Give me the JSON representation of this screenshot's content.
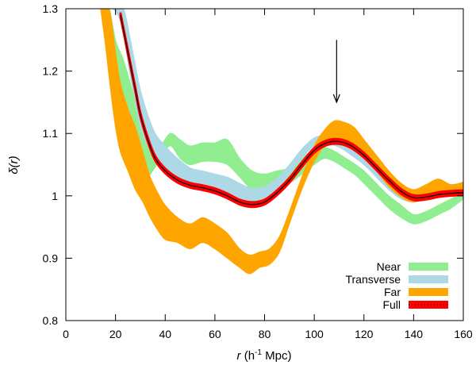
{
  "chart_data": {
    "type": "line",
    "xlim": [
      0,
      160
    ],
    "ylim": [
      0.8,
      1.3
    ],
    "xticks": [
      0,
      20,
      40,
      60,
      80,
      100,
      120,
      140,
      160
    ],
    "yticks": [
      0.8,
      0.9,
      1,
      1.1,
      1.2,
      1.3
    ],
    "xtick_labels": [
      "0",
      "20",
      "40",
      "60",
      "80",
      "100",
      "120",
      "140",
      "160"
    ],
    "ytick_labels": [
      "0.8",
      "0.9",
      "1",
      "1.1",
      "1.2",
      "1.3"
    ],
    "xlabel_parts": [
      "r",
      " (h",
      "-1",
      " Mpc)"
    ],
    "ylabel": "δ(r)",
    "legend_position": "bottom-right",
    "grid": false,
    "annotation": {
      "type": "arrow",
      "x": 109,
      "y_from": 1.25,
      "y_to": 1.15
    },
    "series": [
      {
        "name": "Near",
        "color": "#90ee90",
        "x": [
          14,
          17,
          20,
          23,
          26,
          29,
          32,
          35,
          38,
          42,
          46,
          50,
          55,
          60,
          65,
          70,
          75,
          80,
          85,
          90,
          95,
          100,
          104,
          108,
          112,
          116,
          120,
          125,
          130,
          135,
          140,
          145,
          150,
          155,
          160
        ],
        "lower": [
          1.3,
          1.25,
          1.19,
          1.15,
          1.1,
          1.06,
          1.03,
          1.04,
          1.06,
          1.08,
          1.06,
          1.05,
          1.055,
          1.055,
          1.05,
          1.03,
          1.01,
          1.01,
          1.015,
          1.02,
          1.035,
          1.05,
          1.06,
          1.055,
          1.045,
          1.035,
          1.02,
          1.0,
          0.98,
          0.965,
          0.955,
          0.96,
          0.97,
          0.98,
          0.995
        ],
        "upper": [
          1.31,
          1.31,
          1.25,
          1.22,
          1.18,
          1.13,
          1.09,
          1.08,
          1.08,
          1.1,
          1.09,
          1.08,
          1.085,
          1.085,
          1.09,
          1.06,
          1.04,
          1.035,
          1.04,
          1.045,
          1.06,
          1.075,
          1.078,
          1.072,
          1.062,
          1.052,
          1.04,
          1.02,
          1.0,
          0.985,
          0.97,
          0.975,
          0.985,
          0.995,
          1.005
        ]
      },
      {
        "name": "Transverse",
        "color": "#add8e6",
        "x": [
          16,
          19,
          22,
          24,
          26,
          28,
          30,
          33,
          36,
          40,
          45,
          50,
          55,
          60,
          65,
          70,
          75,
          80,
          85,
          90,
          95,
          100,
          105,
          110,
          115,
          120,
          125,
          130,
          135,
          140,
          145,
          150,
          155,
          160
        ],
        "lower": [
          1.3,
          1.3,
          1.28,
          1.24,
          1.19,
          1.15,
          1.11,
          1.08,
          1.06,
          1.045,
          1.03,
          1.02,
          1.015,
          1.01,
          1.0,
          0.995,
          0.99,
          0.995,
          1.01,
          1.035,
          1.06,
          1.08,
          1.083,
          1.078,
          1.065,
          1.05,
          1.03,
          1.01,
          0.995,
          0.99,
          0.995,
          0.998,
          1.0,
          1.0
        ],
        "upper": [
          1.31,
          1.31,
          1.31,
          1.29,
          1.25,
          1.21,
          1.17,
          1.13,
          1.1,
          1.08,
          1.06,
          1.045,
          1.04,
          1.035,
          1.03,
          1.02,
          1.012,
          1.015,
          1.028,
          1.05,
          1.075,
          1.093,
          1.097,
          1.093,
          1.082,
          1.068,
          1.05,
          1.03,
          1.012,
          1.005,
          1.008,
          1.01,
          1.012,
          1.012
        ]
      },
      {
        "name": "Far",
        "color": "#ffa500",
        "x": [
          14,
          16,
          18,
          20,
          22,
          25,
          28,
          31,
          34,
          37,
          40,
          45,
          50,
          55,
          60,
          65,
          70,
          74,
          78,
          82,
          86,
          90,
          95,
          100,
          104,
          108,
          112,
          116,
          120,
          125,
          130,
          135,
          140,
          145,
          150,
          155,
          160
        ],
        "lower": [
          1.3,
          1.24,
          1.17,
          1.11,
          1.07,
          1.04,
          1.01,
          0.99,
          0.965,
          0.945,
          0.93,
          0.925,
          0.915,
          0.925,
          0.915,
          0.9,
          0.885,
          0.875,
          0.885,
          0.89,
          0.91,
          0.955,
          1.01,
          1.055,
          1.08,
          1.09,
          1.09,
          1.083,
          1.065,
          1.04,
          1.015,
          0.998,
          0.99,
          0.998,
          1.005,
          1.0,
          1.005
        ],
        "upper": [
          1.31,
          1.31,
          1.29,
          1.23,
          1.18,
          1.14,
          1.11,
          1.07,
          1.03,
          1.005,
          0.985,
          0.965,
          0.955,
          0.965,
          0.955,
          0.94,
          0.915,
          0.905,
          0.91,
          0.915,
          0.935,
          0.975,
          1.03,
          1.08,
          1.105,
          1.12,
          1.118,
          1.11,
          1.09,
          1.065,
          1.04,
          1.02,
          1.01,
          1.018,
          1.027,
          1.018,
          1.022
        ]
      },
      {
        "name": "Full",
        "color": "#ff0000",
        "line_color": "#000000",
        "x": [
          22,
          24,
          26,
          28,
          30,
          33,
          36,
          40,
          45,
          50,
          55,
          60,
          65,
          70,
          75,
          80,
          85,
          90,
          95,
          100,
          105,
          110,
          115,
          120,
          125,
          130,
          135,
          140,
          145,
          150,
          155,
          160
        ],
        "y": [
          1.29,
          1.25,
          1.21,
          1.17,
          1.13,
          1.09,
          1.06,
          1.04,
          1.025,
          1.017,
          1.013,
          1.008,
          1.0,
          0.99,
          0.986,
          0.99,
          1.005,
          1.025,
          1.05,
          1.073,
          1.085,
          1.087,
          1.08,
          1.065,
          1.045,
          1.025,
          1.007,
          0.997,
          0.998,
          1.002,
          1.004,
          1.005
        ],
        "half_width": 0.004
      }
    ]
  }
}
